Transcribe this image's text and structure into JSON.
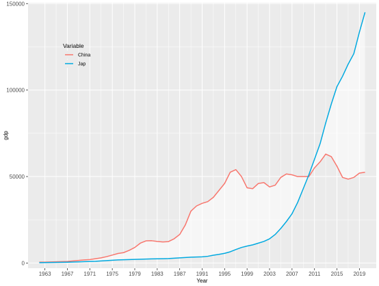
{
  "chart_data": {
    "type": "line",
    "xlabel": "Year",
    "ylabel": "gdp",
    "xlim": [
      1960,
      2022
    ],
    "ylim": [
      -3000,
      150500
    ],
    "x_ticks": [
      1963,
      1967,
      1971,
      1975,
      1979,
      1983,
      1987,
      1991,
      1995,
      1999,
      2003,
      2007,
      2011,
      2015,
      2019
    ],
    "y_ticks": [
      0,
      50000,
      100000,
      150000
    ],
    "grid": true,
    "ribbon_between_series": true,
    "legend": {
      "title": "Variable",
      "position": "top-left"
    },
    "series": [
      {
        "name": "China",
        "color": "#F8766D",
        "x": [
          1962,
          1963,
          1964,
          1965,
          1966,
          1967,
          1968,
          1969,
          1970,
          1971,
          1972,
          1973,
          1974,
          1975,
          1976,
          1977,
          1978,
          1979,
          1980,
          1981,
          1982,
          1983,
          1984,
          1985,
          1986,
          1987,
          1988,
          1989,
          1990,
          1991,
          1992,
          1993,
          1994,
          1995,
          1996,
          1997,
          1998,
          1999,
          2000,
          2001,
          2002,
          2003,
          2004,
          2005,
          2006,
          2007,
          2008,
          2009,
          2010,
          2011,
          2012,
          2013,
          2014,
          2015,
          2016,
          2017,
          2018,
          2019,
          2020
        ],
        "values": [
          500,
          500,
          600,
          700,
          800,
          900,
          1200,
          1500,
          1800,
          2000,
          2500,
          3000,
          3700,
          4600,
          5500,
          6000,
          7300,
          9000,
          11500,
          12800,
          12900,
          12500,
          12200,
          12400,
          14000,
          16500,
          22000,
          30000,
          33000,
          34500,
          35500,
          38000,
          42000,
          46000,
          52500,
          54000,
          50000,
          43500,
          43000,
          46000,
          46500,
          44000,
          45000,
          49500,
          51500,
          51000,
          50000,
          50000,
          50000,
          55000,
          58500,
          63000,
          61500,
          56000,
          49500,
          48500,
          49500,
          52000,
          52500
        ]
      },
      {
        "name": "Jap",
        "color": "#00A9E0",
        "x": [
          1962,
          1963,
          1964,
          1965,
          1966,
          1967,
          1968,
          1969,
          1970,
          1971,
          1972,
          1973,
          1974,
          1975,
          1976,
          1977,
          1978,
          1979,
          1980,
          1981,
          1982,
          1983,
          1984,
          1985,
          1986,
          1987,
          1988,
          1989,
          1990,
          1991,
          1992,
          1993,
          1994,
          1995,
          1996,
          1997,
          1998,
          1999,
          2000,
          2001,
          2002,
          2003,
          2004,
          2005,
          2006,
          2007,
          2008,
          2009,
          2010,
          2011,
          2012,
          2013,
          2014,
          2015,
          2016,
          2017,
          2018,
          2019,
          2020
        ],
        "values": [
          200,
          250,
          300,
          350,
          400,
          450,
          550,
          650,
          800,
          900,
          1000,
          1200,
          1400,
          1600,
          1800,
          1900,
          2000,
          2100,
          2200,
          2300,
          2400,
          2450,
          2500,
          2600,
          2800,
          3000,
          3200,
          3400,
          3500,
          3600,
          3900,
          4500,
          5000,
          5600,
          6500,
          7800,
          9000,
          9800,
          10500,
          11500,
          12500,
          14000,
          16500,
          20000,
          24000,
          28500,
          35000,
          43000,
          51000,
          60000,
          69000,
          81000,
          92000,
          102000,
          108000,
          115000,
          121000,
          133500,
          145000
        ]
      }
    ]
  }
}
